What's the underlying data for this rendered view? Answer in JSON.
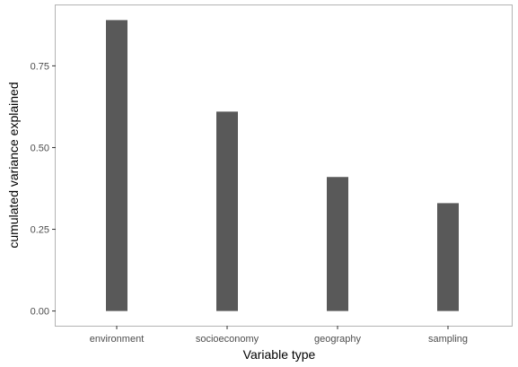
{
  "chart_data": {
    "type": "bar",
    "categories": [
      "environment",
      "socioeconomy",
      "geography",
      "sampling"
    ],
    "values": [
      0.89,
      0.61,
      0.41,
      0.33
    ],
    "title": "",
    "xlabel": "Variable type",
    "ylabel": "cumulated variance explained",
    "ylim": [
      -0.045,
      0.935
    ],
    "yticks": [
      0.0,
      0.25,
      0.5,
      0.75
    ],
    "ytick_labels": [
      "0.00",
      "0.25",
      "0.50",
      "0.75"
    ],
    "grid": false,
    "legend": "none",
    "colors": {
      "bar": "#595959",
      "panel_border": "#b3b3b3",
      "tick": "#333333",
      "tick_label": "#4d4d4d",
      "background": "#ffffff"
    }
  }
}
